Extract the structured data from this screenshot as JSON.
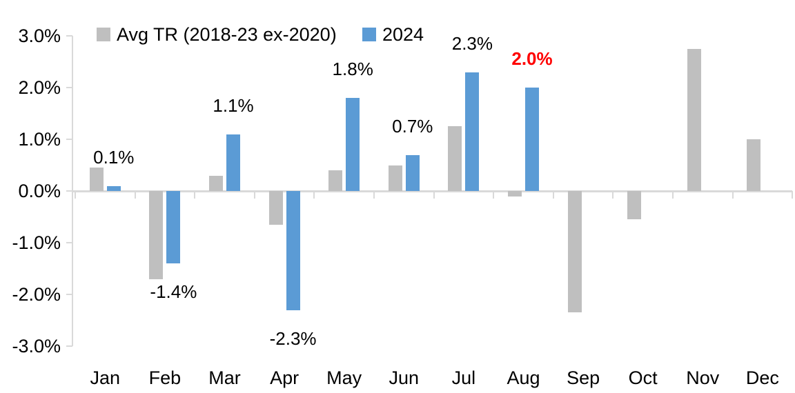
{
  "legend": [
    {
      "label": "Avg TR (2018-23 ex-2020)",
      "color": "#BFBFBF"
    },
    {
      "label": "2024",
      "color": "#5B9BD5"
    }
  ],
  "chart_data": {
    "type": "bar",
    "title": "",
    "xlabel": "",
    "ylabel": "",
    "categories": [
      "Jan",
      "Feb",
      "Mar",
      "Apr",
      "May",
      "Jun",
      "Jul",
      "Aug",
      "Sep",
      "Oct",
      "Nov",
      "Dec"
    ],
    "series": [
      {
        "name": "Avg TR (2018-23 ex-2020)",
        "color": "#BFBFBF",
        "values": [
          0.45,
          -1.7,
          0.3,
          -0.65,
          0.4,
          0.5,
          1.25,
          -0.1,
          -2.35,
          -0.55,
          2.75,
          1.0
        ]
      },
      {
        "name": "2024",
        "color": "#5B9BD5",
        "values": [
          0.1,
          -1.4,
          1.1,
          -2.3,
          1.8,
          0.7,
          2.3,
          2.0,
          null,
          null,
          null,
          null
        ]
      }
    ],
    "data_labels": [
      {
        "text": "0.1%",
        "color": "#000000",
        "bold": false
      },
      {
        "text": "-1.4%",
        "color": "#000000",
        "bold": false
      },
      {
        "text": "1.1%",
        "color": "#000000",
        "bold": false
      },
      {
        "text": "-2.3%",
        "color": "#000000",
        "bold": false
      },
      {
        "text": "1.8%",
        "color": "#000000",
        "bold": false
      },
      {
        "text": "0.7%",
        "color": "#000000",
        "bold": false
      },
      {
        "text": "2.3%",
        "color": "#000000",
        "bold": false
      },
      {
        "text": "2.0%",
        "color": "#FF0000",
        "bold": true
      },
      null,
      null,
      null,
      null
    ],
    "y_ticks": [
      "3.0%",
      "2.0%",
      "1.0%",
      "0.0%",
      "-1.0%",
      "-2.0%",
      "-3.0%"
    ],
    "y_tick_values": [
      3.0,
      2.0,
      1.0,
      0.0,
      -1.0,
      -2.0,
      -3.0
    ],
    "ylim": [
      -3.0,
      3.0
    ],
    "grid": false,
    "legend_position": "top",
    "axis_color": "#D9D9D9"
  }
}
